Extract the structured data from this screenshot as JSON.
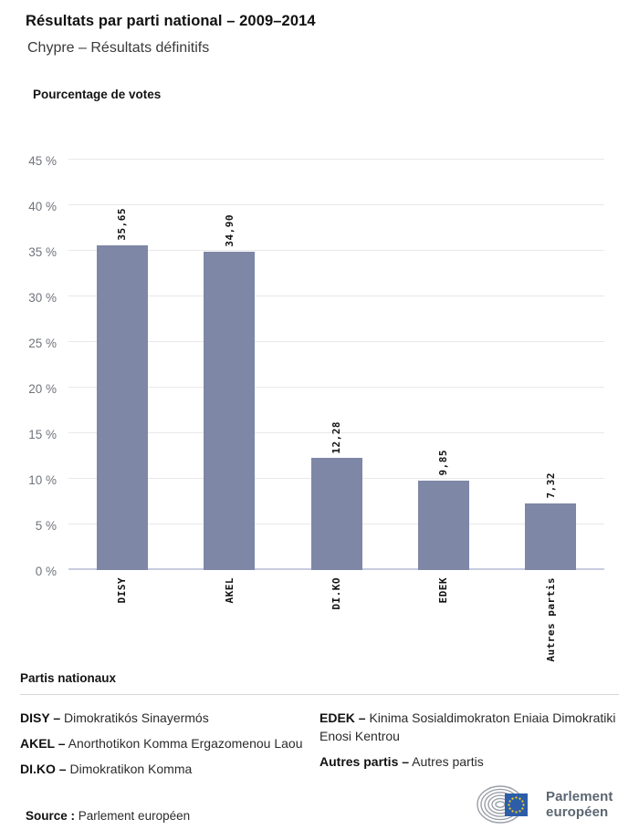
{
  "header": {
    "title": "Résultats par parti national – 2009–2014",
    "subtitle": "Chypre – Résultats définitifs"
  },
  "chart_data": {
    "type": "bar",
    "title": "Pourcentage de votes",
    "ylabel": "Pourcentage de votes",
    "xlabel": "",
    "categories": [
      "DISY",
      "AKEL",
      "DI.KO",
      "EDEK",
      "Autres partis"
    ],
    "values": [
      35.65,
      34.9,
      12.28,
      9.85,
      7.32
    ],
    "value_labels": [
      "35,65",
      "34,90",
      "12,28",
      "9,85",
      "7,32"
    ],
    "ylim": [
      0,
      45
    ],
    "ytick_step": 5,
    "ytick_suffix": " %",
    "grid": true,
    "legend_position": "none",
    "bar_color": "#7e87a6"
  },
  "legend": {
    "heading": "Partis nationaux",
    "columns": [
      [
        {
          "label": "DISY –",
          "text": "Dimokratikós Sinayermós"
        },
        {
          "label": "AKEL –",
          "text": "Anorthotikon Komma Ergazomenou Laou"
        },
        {
          "label": "DI.KO –",
          "text": "Dimokratikon Komma"
        }
      ],
      [
        {
          "label": "EDEK –",
          "text": "Kinima Sosialdimokraton Eniaia Dimokratiki Enosi Kentrou"
        },
        {
          "label": "Autres partis –",
          "text": "Autres partis"
        }
      ]
    ]
  },
  "footer": {
    "source_label": "Source :",
    "source_value": "Parlement européen",
    "logo_line1": "Parlement",
    "logo_line2": "européen"
  },
  "colors": {
    "bar": "#7e87a6",
    "gridline": "#e8e8ea",
    "zero_axis": "#c7ccdf",
    "tick_text": "#70747b",
    "flag_blue": "#2d5da9",
    "flag_stars": "#f7d117",
    "hemicycle_gray": "#9aa0a8",
    "logo_text_gray": "#5c6671"
  }
}
